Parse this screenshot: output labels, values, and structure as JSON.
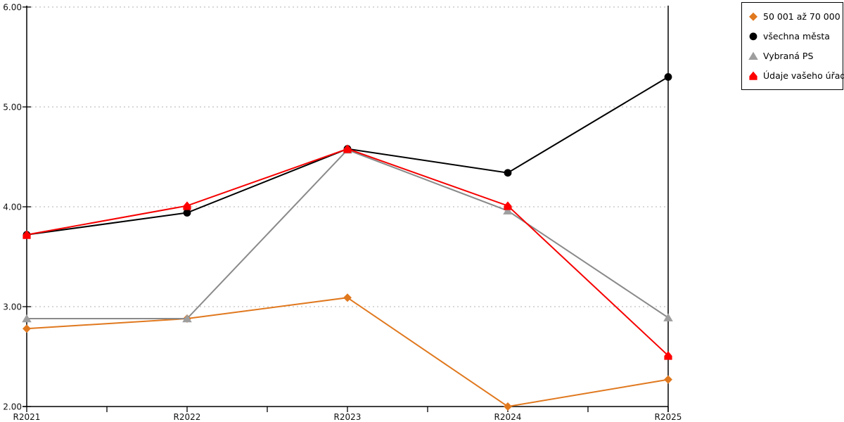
{
  "chart_data": {
    "type": "line",
    "title": "",
    "xlabel": "",
    "ylabel": "",
    "categories": [
      "R2021",
      "R2022",
      "R2023",
      "R2024",
      "R2025"
    ],
    "series": [
      {
        "name": "50 001 až 70 000",
        "marker": "diamond",
        "color": "#E0781E",
        "values": [
          2.78,
          2.88,
          3.09,
          2.0,
          2.27
        ]
      },
      {
        "name": "všechna města",
        "marker": "circle",
        "color": "#000000",
        "values": [
          3.72,
          3.94,
          4.58,
          4.34,
          5.3
        ]
      },
      {
        "name": "Vybraná PS",
        "marker": "triangle",
        "color": "#8A8A8A",
        "marker_color": "#9E9E9E",
        "values": [
          2.88,
          2.88,
          4.57,
          3.96,
          2.89
        ]
      },
      {
        "name": "Údaje vašeho úřadu",
        "marker": "pentagon",
        "color": "#F60000",
        "marker_color": "#FF0000",
        "values": [
          3.72,
          4.01,
          4.58,
          4.01,
          2.51
        ]
      }
    ],
    "draw_order": [
      0,
      2,
      1,
      3
    ],
    "ylim": [
      2,
      6
    ],
    "ytick_step": 1,
    "ytick_labels": [
      "2.00",
      "3.00",
      "4.00",
      "5.00",
      "6.00"
    ],
    "x_minor_ticks_per_interval": 1,
    "grid": "horizontal-dotted",
    "legend_position": "top-right",
    "colors": {
      "axis": "#000000",
      "gridline": "#C0C0C0",
      "text": "#111111",
      "legend_border": "#000000",
      "background": "#FFFFFF"
    }
  }
}
